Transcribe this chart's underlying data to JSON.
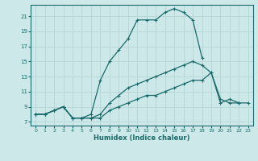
{
  "xlabel": "Humidex (Indice chaleur)",
  "bg_color": "#cde8e8",
  "line_color": "#1a6b6b",
  "grid_color": "#b8d8d8",
  "x_ticks": [
    0,
    1,
    2,
    3,
    4,
    5,
    6,
    7,
    8,
    9,
    10,
    11,
    12,
    13,
    14,
    15,
    16,
    17,
    18,
    19,
    20,
    21,
    22,
    23
  ],
  "y_ticks": [
    7,
    9,
    11,
    13,
    15,
    17,
    19,
    21
  ],
  "ylim": [
    6.5,
    22.5
  ],
  "xlim": [
    -0.5,
    23.5
  ],
  "line1_y": [
    8.0,
    8.0,
    8.5,
    9.0,
    7.5,
    7.5,
    8.0,
    12.5,
    15.0,
    16.5,
    18.0,
    20.5,
    20.5,
    20.5,
    21.5,
    22.0,
    21.5,
    20.5,
    15.5,
    null,
    null,
    null,
    null,
    null
  ],
  "line2_y": [
    8.0,
    8.0,
    8.5,
    9.0,
    7.5,
    7.5,
    7.5,
    8.0,
    9.5,
    10.5,
    11.5,
    12.0,
    12.5,
    13.0,
    13.5,
    14.0,
    14.5,
    15.0,
    14.5,
    13.5,
    10.0,
    9.5,
    9.5,
    null
  ],
  "line3_y": [
    8.0,
    8.0,
    8.5,
    9.0,
    7.5,
    7.5,
    7.5,
    7.5,
    8.5,
    9.0,
    9.5,
    10.0,
    10.5,
    10.5,
    11.0,
    11.5,
    12.0,
    12.5,
    12.5,
    13.5,
    9.5,
    10.0,
    9.5,
    9.5
  ]
}
